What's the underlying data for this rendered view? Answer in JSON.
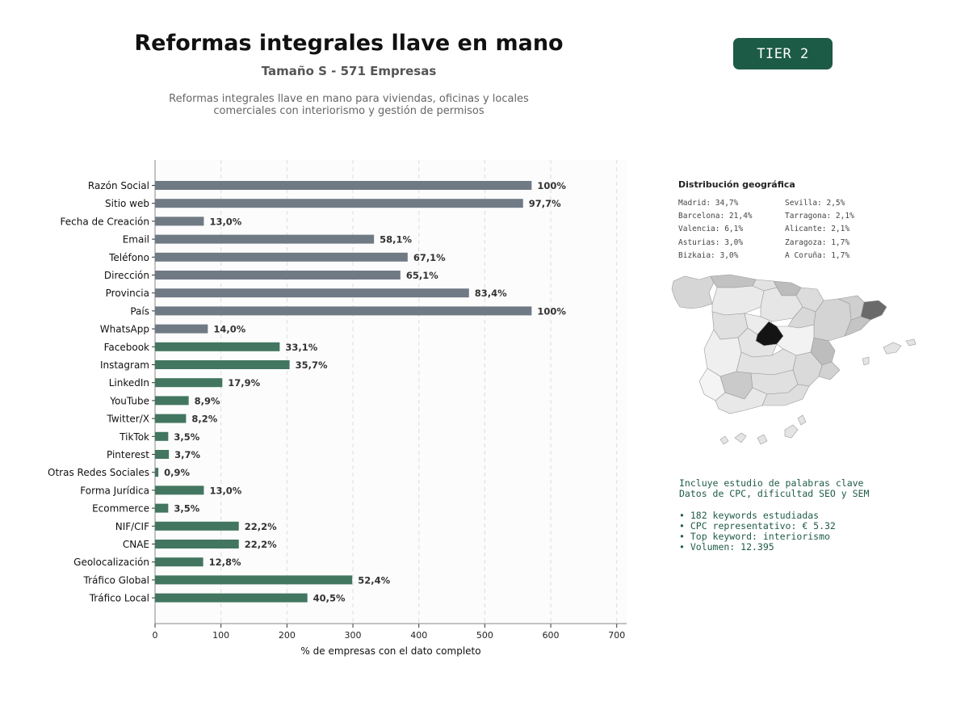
{
  "header": {
    "title": "Reformas integrales llave en mano",
    "subtitle": "Tamaño S - 571 Empresas",
    "description_line1": "Reformas integrales llave en mano para viviendas, oficinas y locales",
    "description_line2": "comerciales con interiorismo y gestión de permisos",
    "tier": "TIER 2"
  },
  "chart_data": {
    "type": "bar",
    "orientation": "horizontal",
    "title": "",
    "xlabel": "% de empresas con el dato completo",
    "ylabel": "",
    "xlim": [
      0,
      715
    ],
    "xticks": [
      0,
      100,
      200,
      300,
      400,
      500,
      600,
      700
    ],
    "grid": "vertical dashed",
    "categories": [
      "Razón Social",
      "Sitio web",
      "Fecha de Creación",
      "Email",
      "Teléfono",
      "Dirección",
      "Provincia",
      "País",
      "WhatsApp",
      "Facebook",
      "Instagram",
      "LinkedIn",
      "YouTube",
      "Twitter/X",
      "TikTok",
      "Pinterest",
      "Otras Redes Sociales",
      "Forma Jurídica",
      "Ecommerce",
      "NIF/CIF",
      "CNAE",
      "Geolocalización",
      "Tráfico Global",
      "Tráfico Local"
    ],
    "values": [
      571,
      558,
      74,
      332,
      383,
      372,
      476,
      571,
      80,
      189,
      204,
      102,
      51,
      47,
      20,
      21,
      5,
      74,
      20,
      127,
      127,
      73,
      299,
      231
    ],
    "labels": [
      "100%",
      "97,7%",
      "13,0%",
      "58,1%",
      "67,1%",
      "65,1%",
      "83,4%",
      "100%",
      "14,0%",
      "33,1%",
      "35,7%",
      "17,9%",
      "8,9%",
      "8,2%",
      "3,5%",
      "3,7%",
      "0,9%",
      "13,0%",
      "3,5%",
      "22,2%",
      "22,2%",
      "12,8%",
      "52,4%",
      "40,5%"
    ],
    "groups": [
      "basic",
      "basic",
      "basic",
      "basic",
      "basic",
      "basic",
      "basic",
      "basic",
      "basic",
      "social",
      "social",
      "social",
      "social",
      "social",
      "social",
      "social",
      "social",
      "social",
      "social",
      "social",
      "social",
      "social",
      "social",
      "social"
    ],
    "colors": {
      "basic": "#6f7a85",
      "social": "#427660"
    }
  },
  "geo": {
    "title": "Distribución geográfica",
    "items": [
      "Madrid: 34,7%",
      "Sevilla: 2,5%",
      "Barcelona: 21,4%",
      "Tarragona: 2,1%",
      "Valencia: 6,1%",
      "Alicante: 2,1%",
      "Asturias: 3,0%",
      "Zaragoza: 1,7%",
      "Bizkaia: 3,0%",
      "A Coruña: 1,7%"
    ]
  },
  "keywords": {
    "line1": "Incluye estudio de palabras clave",
    "line2": "Datos de CPC, dificultad SEO y SEM",
    "bullets": [
      "• 182 keywords estudiadas",
      "• CPC representativo: € 5.32",
      "• Top keyword: interiorismo",
      "• Volumen: 12.395"
    ]
  }
}
